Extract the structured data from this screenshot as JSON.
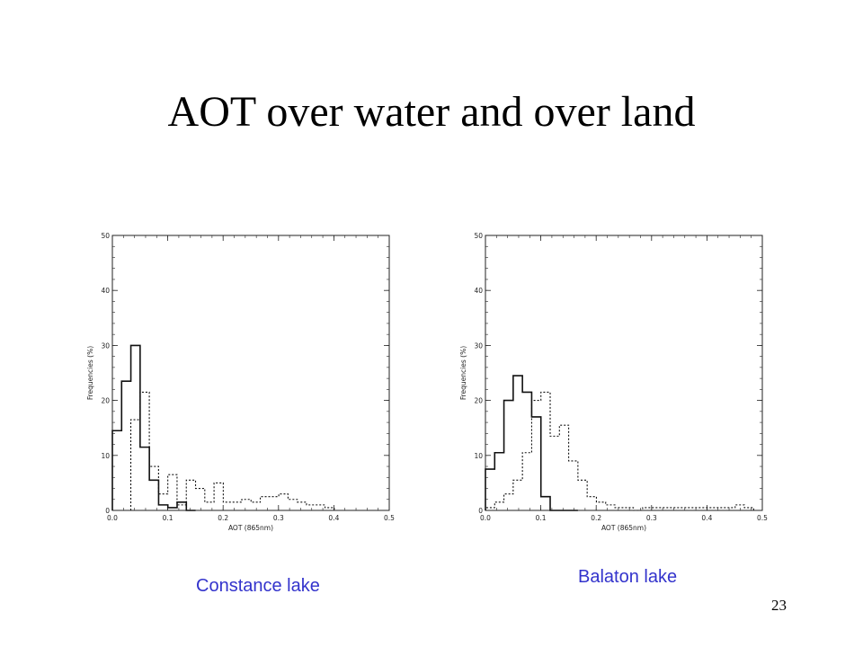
{
  "slide": {
    "title": "AOT over water and over land",
    "number": "23",
    "captions": [
      "Constance lake",
      "Balaton lake"
    ]
  },
  "chart_data": [
    {
      "type": "histogram",
      "title": "",
      "xlabel": "AOT (865nm)",
      "ylabel": "Frequencies (%)",
      "xlim": [
        0.0,
        0.5
      ],
      "ylim": [
        0,
        50
      ],
      "xticks": [
        "0.0",
        "0.1",
        "0.2",
        "0.3",
        "0.4",
        "0.5"
      ],
      "yticks": [
        "0",
        "10",
        "20",
        "30",
        "40",
        "50"
      ],
      "bin_width": 0.0167,
      "series": [
        {
          "style": "solid",
          "bin_start": 0.0,
          "values": [
            14.5,
            23.5,
            30,
            11.5,
            5.5,
            1,
            0.5,
            1.5,
            0
          ]
        },
        {
          "style": "dotted",
          "bin_start": 0.0333,
          "values": [
            16.5,
            21.5,
            8,
            3,
            6.5,
            1,
            5.5,
            4,
            1.5,
            5,
            1.5,
            1.5,
            2,
            1.5,
            2.5,
            2.5,
            3,
            2,
            1.5,
            1,
            1,
            0.5
          ]
        }
      ]
    },
    {
      "type": "histogram",
      "title": "",
      "xlabel": "AOT (865nm)",
      "ylabel": "Frequencies (%)",
      "xlim": [
        0.0,
        0.5
      ],
      "ylim": [
        0,
        50
      ],
      "xticks": [
        "0.0",
        "0.1",
        "0.2",
        "0.3",
        "0.4",
        "0.5"
      ],
      "yticks": [
        "0",
        "10",
        "20",
        "30",
        "40",
        "50"
      ],
      "bin_width": 0.0167,
      "series": [
        {
          "style": "solid",
          "bin_start": 0.0,
          "values": [
            7.5,
            10.5,
            20,
            24.5,
            21.5,
            17,
            2.5,
            0,
            0,
            0
          ]
        },
        {
          "style": "dotted",
          "bin_start": 0.0,
          "values": [
            0.5,
            1.5,
            3,
            5.5,
            10.5,
            20,
            21.5,
            13.5,
            15.5,
            9,
            5.5,
            2.5,
            1.5,
            1,
            0.5,
            0.5,
            0,
            0.5,
            0.5,
            0.5,
            0.5,
            0.5,
            0.5,
            0.5,
            0.5,
            0.5,
            0.5,
            1,
            0.5
          ]
        }
      ]
    }
  ]
}
